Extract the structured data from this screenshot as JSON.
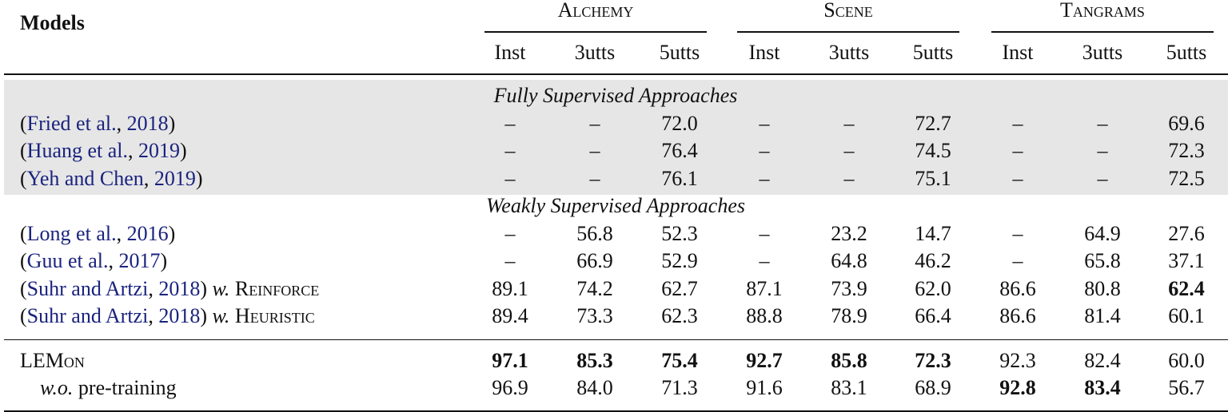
{
  "header": {
    "models": "Models",
    "groups": [
      {
        "name": "Alchemy",
        "columns": [
          "Inst",
          "3utts",
          "5utts"
        ]
      },
      {
        "name": "Scene",
        "columns": [
          "Inst",
          "3utts",
          "5utts"
        ]
      },
      {
        "name": "Tangrams",
        "columns": [
          "Inst",
          "3utts",
          "5utts"
        ]
      }
    ]
  },
  "sections": [
    {
      "title": "Fully Supervised Approaches",
      "shaded": true,
      "rows": [
        {
          "model": [
            {
              "text": "(",
              "style": "plain"
            },
            {
              "text": "Fried et al.",
              "style": "cite"
            },
            {
              "text": ", ",
              "style": "plain"
            },
            {
              "text": "2018",
              "style": "cite"
            },
            {
              "text": ")",
              "style": "plain"
            }
          ],
          "cells": [
            "–",
            "–",
            "72.0",
            "–",
            "–",
            "72.7",
            "–",
            "–",
            "69.6"
          ],
          "bold": []
        },
        {
          "model": [
            {
              "text": "(",
              "style": "plain"
            },
            {
              "text": "Huang et al.",
              "style": "cite"
            },
            {
              "text": ", ",
              "style": "plain"
            },
            {
              "text": "2019",
              "style": "cite"
            },
            {
              "text": ")",
              "style": "plain"
            }
          ],
          "cells": [
            "–",
            "–",
            "76.4",
            "–",
            "–",
            "74.5",
            "–",
            "–",
            "72.3"
          ],
          "bold": []
        },
        {
          "model": [
            {
              "text": "(",
              "style": "plain"
            },
            {
              "text": "Yeh and Chen",
              "style": "cite"
            },
            {
              "text": ", ",
              "style": "plain"
            },
            {
              "text": "2019",
              "style": "cite"
            },
            {
              "text": ")",
              "style": "plain"
            }
          ],
          "cells": [
            "–",
            "–",
            "76.1",
            "–",
            "–",
            "75.1",
            "–",
            "–",
            "72.5"
          ],
          "bold": []
        }
      ]
    },
    {
      "title": "Weakly Supervised Approaches",
      "shaded": false,
      "rows": [
        {
          "model": [
            {
              "text": "(",
              "style": "plain"
            },
            {
              "text": "Long et al.",
              "style": "cite"
            },
            {
              "text": ", ",
              "style": "plain"
            },
            {
              "text": "2016",
              "style": "cite"
            },
            {
              "text": ")",
              "style": "plain"
            }
          ],
          "cells": [
            "–",
            "56.8",
            "52.3",
            "–",
            "23.2",
            "14.7",
            "–",
            "64.9",
            "27.6"
          ],
          "bold": []
        },
        {
          "model": [
            {
              "text": "(",
              "style": "plain"
            },
            {
              "text": "Guu et al.",
              "style": "cite"
            },
            {
              "text": ", ",
              "style": "plain"
            },
            {
              "text": "2017",
              "style": "cite"
            },
            {
              "text": ")",
              "style": "plain"
            }
          ],
          "cells": [
            "–",
            "66.9",
            "52.9",
            "–",
            "64.8",
            "46.2",
            "–",
            "65.8",
            "37.1"
          ],
          "bold": []
        },
        {
          "model": [
            {
              "text": "(",
              "style": "plain"
            },
            {
              "text": "Suhr and Artzi",
              "style": "cite"
            },
            {
              "text": ", ",
              "style": "plain"
            },
            {
              "text": "2018",
              "style": "cite"
            },
            {
              "text": ") ",
              "style": "plain"
            },
            {
              "text": "w.",
              "style": "italic"
            },
            {
              "text": " Reinforce",
              "style": "smallcaps"
            }
          ],
          "cells": [
            "89.1",
            "74.2",
            "62.7",
            "87.1",
            "73.9",
            "62.0",
            "86.6",
            "80.8",
            "62.4"
          ],
          "bold": [
            8
          ]
        },
        {
          "model": [
            {
              "text": "(",
              "style": "plain"
            },
            {
              "text": "Suhr and Artzi",
              "style": "cite"
            },
            {
              "text": ", ",
              "style": "plain"
            },
            {
              "text": "2018",
              "style": "cite"
            },
            {
              "text": ") ",
              "style": "plain"
            },
            {
              "text": "w.",
              "style": "italic"
            },
            {
              "text": " Heuristic",
              "style": "smallcaps"
            }
          ],
          "cells": [
            "89.4",
            "73.3",
            "62.3",
            "88.8",
            "78.9",
            "66.4",
            "86.6",
            "81.4",
            "60.1"
          ],
          "bold": []
        }
      ]
    },
    {
      "shaded": false,
      "rows": [
        {
          "model": [
            {
              "text": "LEMon",
              "style": "smallcaps"
            }
          ],
          "cells": [
            "97.1",
            "85.3",
            "75.4",
            "92.7",
            "85.8",
            "72.3",
            "92.3",
            "82.4",
            "60.0"
          ],
          "bold": [
            0,
            1,
            2,
            3,
            4,
            5
          ]
        },
        {
          "indent": true,
          "model": [
            {
              "text": "w.o.",
              "style": "italic"
            },
            {
              "text": " pre-training",
              "style": "plain"
            }
          ],
          "cells": [
            "96.9",
            "84.0",
            "71.3",
            "91.6",
            "83.1",
            "68.9",
            "92.8",
            "83.4",
            "56.7"
          ],
          "bold": [
            6,
            7
          ]
        }
      ]
    }
  ]
}
